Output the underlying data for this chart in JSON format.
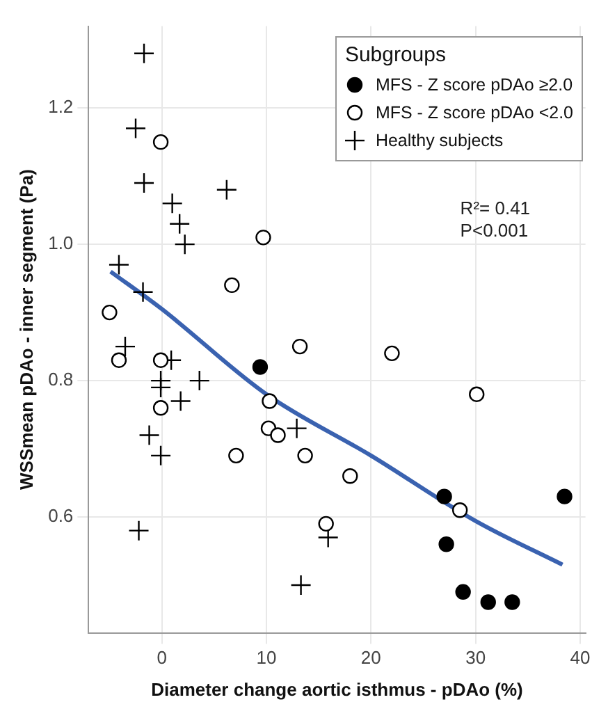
{
  "chart_data": {
    "type": "scatter",
    "xlabel": "Diameter change aortic isthmus - pDAo (%)",
    "ylabel": "WSSmean pDAo - inner segment (Pa)",
    "legend_title": "Subgroups",
    "legend": "top right",
    "grid": true,
    "xlim": [
      -7,
      40.5
    ],
    "ylim": [
      0.43,
      1.32
    ],
    "xticks": [
      0,
      10,
      20,
      30,
      40
    ],
    "yticks": [
      {
        "value": 0.6,
        "label": "0.6"
      },
      {
        "value": 0.8,
        "label": "0.8"
      },
      {
        "value": 1,
        "label": "1.0"
      },
      {
        "value": 1.2,
        "label": "1.2"
      }
    ],
    "annotations": [
      "R²= 0.41",
      "P<0.001"
    ],
    "series": [
      {
        "name": "MFS - Z score pDAo ≥2.0",
        "color": "#000000",
        "marker": "circle",
        "x": [
          9.4,
          27.0,
          27.2,
          28.8,
          31.2,
          33.5,
          38.5
        ],
        "values": [
          0.82,
          0.63,
          0.56,
          0.49,
          0.475,
          0.475,
          0.63
        ]
      },
      {
        "name": "MFS - Z score pDAo <2.0",
        "color": "#000000",
        "marker": "circle",
        "x": [
          -0.1,
          9.7,
          6.7,
          -5.0,
          -4.1,
          -0.1,
          -0.1,
          7.1,
          10.3,
          10.2,
          11.1,
          13.2,
          13.7,
          22.0,
          30.1,
          18.0,
          15.7,
          28.5
        ],
        "values": [
          1.15,
          1.01,
          0.94,
          0.9,
          0.83,
          0.83,
          0.76,
          0.69,
          0.77,
          0.73,
          0.72,
          0.85,
          0.69,
          0.84,
          0.78,
          0.66,
          0.59,
          0.61
        ]
      },
      {
        "name": "Healthy subjects",
        "color": "#000000",
        "marker": "cross",
        "x": [
          -1.7,
          -2.5,
          -1.7,
          1.0,
          1.7,
          2.2,
          6.2,
          -4.1,
          -1.8,
          -3.5,
          0.9,
          -0.1,
          -0.1,
          3.6,
          1.8,
          -1.2,
          -0.1,
          -2.2,
          13.3,
          12.9,
          15.9
        ],
        "values": [
          1.28,
          1.17,
          1.09,
          1.06,
          1.03,
          1.0,
          1.08,
          0.97,
          0.93,
          0.85,
          0.83,
          0.8,
          0.79,
          0.8,
          0.77,
          0.72,
          0.69,
          0.58,
          0.5,
          0.73,
          0.57
        ]
      },
      {
        "type": "line",
        "color": "#3a62b0",
        "marker": "none",
        "x": [
          -4.9,
          0,
          10,
          20,
          30,
          38.3
        ],
        "values": [
          0.96,
          0.905,
          0.78,
          0.69,
          0.594,
          0.53
        ]
      }
    ]
  }
}
